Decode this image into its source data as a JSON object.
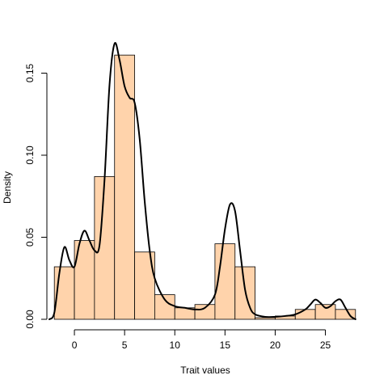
{
  "chart_data": {
    "type": "bar",
    "subtype": "histogram-with-density",
    "title": "",
    "xlabel": "Trait values",
    "ylabel": "Density",
    "xlim": [
      -2.5,
      28.5
    ],
    "ylim": [
      0,
      0.166
    ],
    "x_ticks": [
      0,
      5,
      10,
      15,
      20,
      25
    ],
    "y_ticks": [
      0.0,
      0.05,
      0.1,
      0.15
    ],
    "y_tick_labels": [
      "0.00",
      "0.05",
      "0.10",
      "0.15"
    ],
    "grid": false,
    "bar_color": "#FFD3AB",
    "bins": [
      {
        "x0": -2,
        "x1": 0,
        "density": 0.032
      },
      {
        "x0": 0,
        "x1": 2,
        "density": 0.048
      },
      {
        "x0": 2,
        "x1": 4,
        "density": 0.087
      },
      {
        "x0": 4,
        "x1": 6,
        "density": 0.161
      },
      {
        "x0": 6,
        "x1": 8,
        "density": 0.041
      },
      {
        "x0": 8,
        "x1": 10,
        "density": 0.015
      },
      {
        "x0": 10,
        "x1": 12,
        "density": 0.007
      },
      {
        "x0": 12,
        "x1": 14,
        "density": 0.009
      },
      {
        "x0": 14,
        "x1": 16,
        "density": 0.046
      },
      {
        "x0": 16,
        "x1": 18,
        "density": 0.032
      },
      {
        "x0": 18,
        "x1": 20,
        "density": 0.001
      },
      {
        "x0": 20,
        "x1": 22,
        "density": 0.002
      },
      {
        "x0": 22,
        "x1": 24,
        "density": 0.006
      },
      {
        "x0": 24,
        "x1": 26,
        "density": 0.009
      },
      {
        "x0": 26,
        "x1": 28,
        "density": 0.006
      }
    ],
    "density_curve": {
      "x": [
        -2.5,
        -2.0,
        -1.5,
        -1.0,
        -0.5,
        0.0,
        0.5,
        1.0,
        1.5,
        2.0,
        2.5,
        3.0,
        3.5,
        4.0,
        4.5,
        5.0,
        5.5,
        6.0,
        6.5,
        7.0,
        7.5,
        8.0,
        9.0,
        10.0,
        11.0,
        12.0,
        13.0,
        14.0,
        14.5,
        15.0,
        15.5,
        16.0,
        16.5,
        17.0,
        17.5,
        18.0,
        19.0,
        20.0,
        21.0,
        22.0,
        23.0,
        23.5,
        24.0,
        24.5,
        25.0,
        25.5,
        26.0,
        26.5,
        27.0,
        27.5,
        28.0
      ],
      "y": [
        0.0,
        0.004,
        0.028,
        0.044,
        0.036,
        0.032,
        0.046,
        0.054,
        0.048,
        0.042,
        0.045,
        0.085,
        0.143,
        0.168,
        0.158,
        0.142,
        0.135,
        0.132,
        0.11,
        0.072,
        0.042,
        0.025,
        0.012,
        0.008,
        0.007,
        0.006,
        0.007,
        0.015,
        0.032,
        0.055,
        0.07,
        0.066,
        0.042,
        0.018,
        0.007,
        0.003,
        0.0015,
        0.0015,
        0.002,
        0.003,
        0.006,
        0.009,
        0.012,
        0.01,
        0.007,
        0.008,
        0.011,
        0.012,
        0.007,
        0.002,
        0.0
      ]
    }
  }
}
